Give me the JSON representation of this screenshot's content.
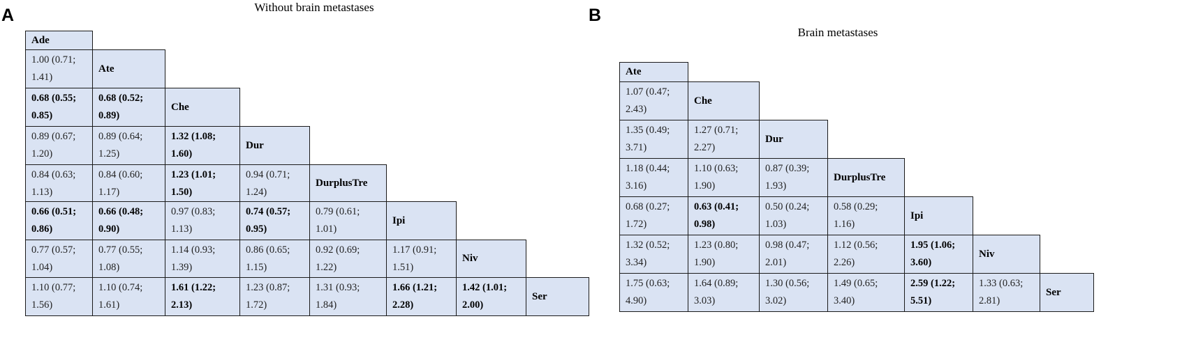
{
  "panels": [
    {
      "letter": "A",
      "title": "Without brain metastases",
      "treatments": [
        "Ade",
        "Ate",
        "Che",
        "Dur",
        "DurplusTre",
        "Ipi",
        "Niv",
        "Ser"
      ],
      "rows": [
        [],
        [
          {
            "l1": "1.00 (0.71;",
            "l2": "1.41)",
            "bold": false
          }
        ],
        [
          {
            "l1": "0.68 (0.55;",
            "l2": "0.85)",
            "bold": true
          },
          {
            "l1": "0.68 (0.52;",
            "l2": "0.89)",
            "bold": true
          }
        ],
        [
          {
            "l1": "0.89 (0.67;",
            "l2": "1.20)",
            "bold": false
          },
          {
            "l1": "0.89 (0.64;",
            "l2": "1.25)",
            "bold": false
          },
          {
            "l1": "1.32 (1.08;",
            "l2": "1.60)",
            "bold": true
          }
        ],
        [
          {
            "l1": "0.84 (0.63;",
            "l2": "1.13)",
            "bold": false
          },
          {
            "l1": "0.84 (0.60;",
            "l2": "1.17)",
            "bold": false
          },
          {
            "l1": "1.23 (1.01;",
            "l2": "1.50)",
            "bold": true
          },
          {
            "l1": "0.94 (0.71;",
            "l2": "1.24)",
            "bold": false
          }
        ],
        [
          {
            "l1": "0.66 (0.51;",
            "l2": "0.86)",
            "bold": true
          },
          {
            "l1": "0.66 (0.48;",
            "l2": "0.90)",
            "bold": true
          },
          {
            "l1": "0.97 (0.83;",
            "l2": "1.13)",
            "bold": false
          },
          {
            "l1": "0.74 (0.57;",
            "l2": "0.95)",
            "bold": true
          },
          {
            "l1": "0.79 (0.61;",
            "l2": "1.01)",
            "bold": false
          }
        ],
        [
          {
            "l1": "0.77 (0.57;",
            "l2": "1.04)",
            "bold": false
          },
          {
            "l1": "0.77 (0.55;",
            "l2": "1.08)",
            "bold": false
          },
          {
            "l1": "1.14 (0.93;",
            "l2": "1.39)",
            "bold": false
          },
          {
            "l1": "0.86 (0.65;",
            "l2": "1.15)",
            "bold": false
          },
          {
            "l1": "0.92 (0.69;",
            "l2": "1.22)",
            "bold": false
          },
          {
            "l1": "1.17 (0.91;",
            "l2": "1.51)",
            "bold": false
          }
        ],
        [
          {
            "l1": "1.10 (0.77;",
            "l2": "1.56)",
            "bold": false
          },
          {
            "l1": "1.10 (0.74;",
            "l2": "1.61)",
            "bold": false
          },
          {
            "l1": "1.61 (1.22;",
            "l2": "2.13)",
            "bold": true
          },
          {
            "l1": "1.23 (0.87;",
            "l2": "1.72)",
            "bold": false
          },
          {
            "l1": "1.31 (0.93;",
            "l2": "1.84)",
            "bold": false
          },
          {
            "l1": "1.66 (1.21;",
            "l2": "2.28)",
            "bold": true
          },
          {
            "l1": "1.42 (1.01;",
            "l2": "2.00)",
            "bold": true
          }
        ]
      ]
    },
    {
      "letter": "B",
      "title": "Brain metastases",
      "treatments": [
        "Ate",
        "Che",
        "Dur",
        "DurplusTre",
        "Ipi",
        "Niv",
        "Ser"
      ],
      "rows": [
        [],
        [
          {
            "l1": "1.07 (0.47;",
            "l2": "2.43)",
            "bold": false
          }
        ],
        [
          {
            "l1": "1.35 (0.49;",
            "l2": "3.71)",
            "bold": false
          },
          {
            "l1": "1.27 (0.71;",
            "l2": "2.27)",
            "bold": false
          }
        ],
        [
          {
            "l1": "1.18 (0.44;",
            "l2": "3.16)",
            "bold": false
          },
          {
            "l1": "1.10 (0.63;",
            "l2": "1.90)",
            "bold": false
          },
          {
            "l1": "0.87 (0.39;",
            "l2": "1.93)",
            "bold": false
          }
        ],
        [
          {
            "l1": "0.68 (0.27;",
            "l2": "1.72)",
            "bold": false
          },
          {
            "l1": "0.63 (0.41;",
            "l2": "0.98)",
            "bold": true
          },
          {
            "l1": "0.50 (0.24;",
            "l2": "1.03)",
            "bold": false
          },
          {
            "l1": "0.58 (0.29;",
            "l2": "1.16)",
            "bold": false
          }
        ],
        [
          {
            "l1": "1.32 (0.52;",
            "l2": "3.34)",
            "bold": false
          },
          {
            "l1": "1.23 (0.80;",
            "l2": "1.90)",
            "bold": false
          },
          {
            "l1": "0.98 (0.47;",
            "l2": "2.01)",
            "bold": false
          },
          {
            "l1": "1.12 (0.56;",
            "l2": "2.26)",
            "bold": false
          },
          {
            "l1": "1.95 (1.06;",
            "l2": "3.60)",
            "bold": true
          }
        ],
        [
          {
            "l1": "1.75 (0.63;",
            "l2": "4.90)",
            "bold": false
          },
          {
            "l1": "1.64 (0.89;",
            "l2": "3.03)",
            "bold": false
          },
          {
            "l1": "1.30 (0.56;",
            "l2": "3.02)",
            "bold": false
          },
          {
            "l1": "1.49 (0.65;",
            "l2": "3.40)",
            "bold": false
          },
          {
            "l1": "2.59 (1.22;",
            "l2": "5.51)",
            "bold": true
          },
          {
            "l1": "1.33 (0.63;",
            "l2": "2.81)",
            "bold": false
          }
        ]
      ]
    }
  ]
}
